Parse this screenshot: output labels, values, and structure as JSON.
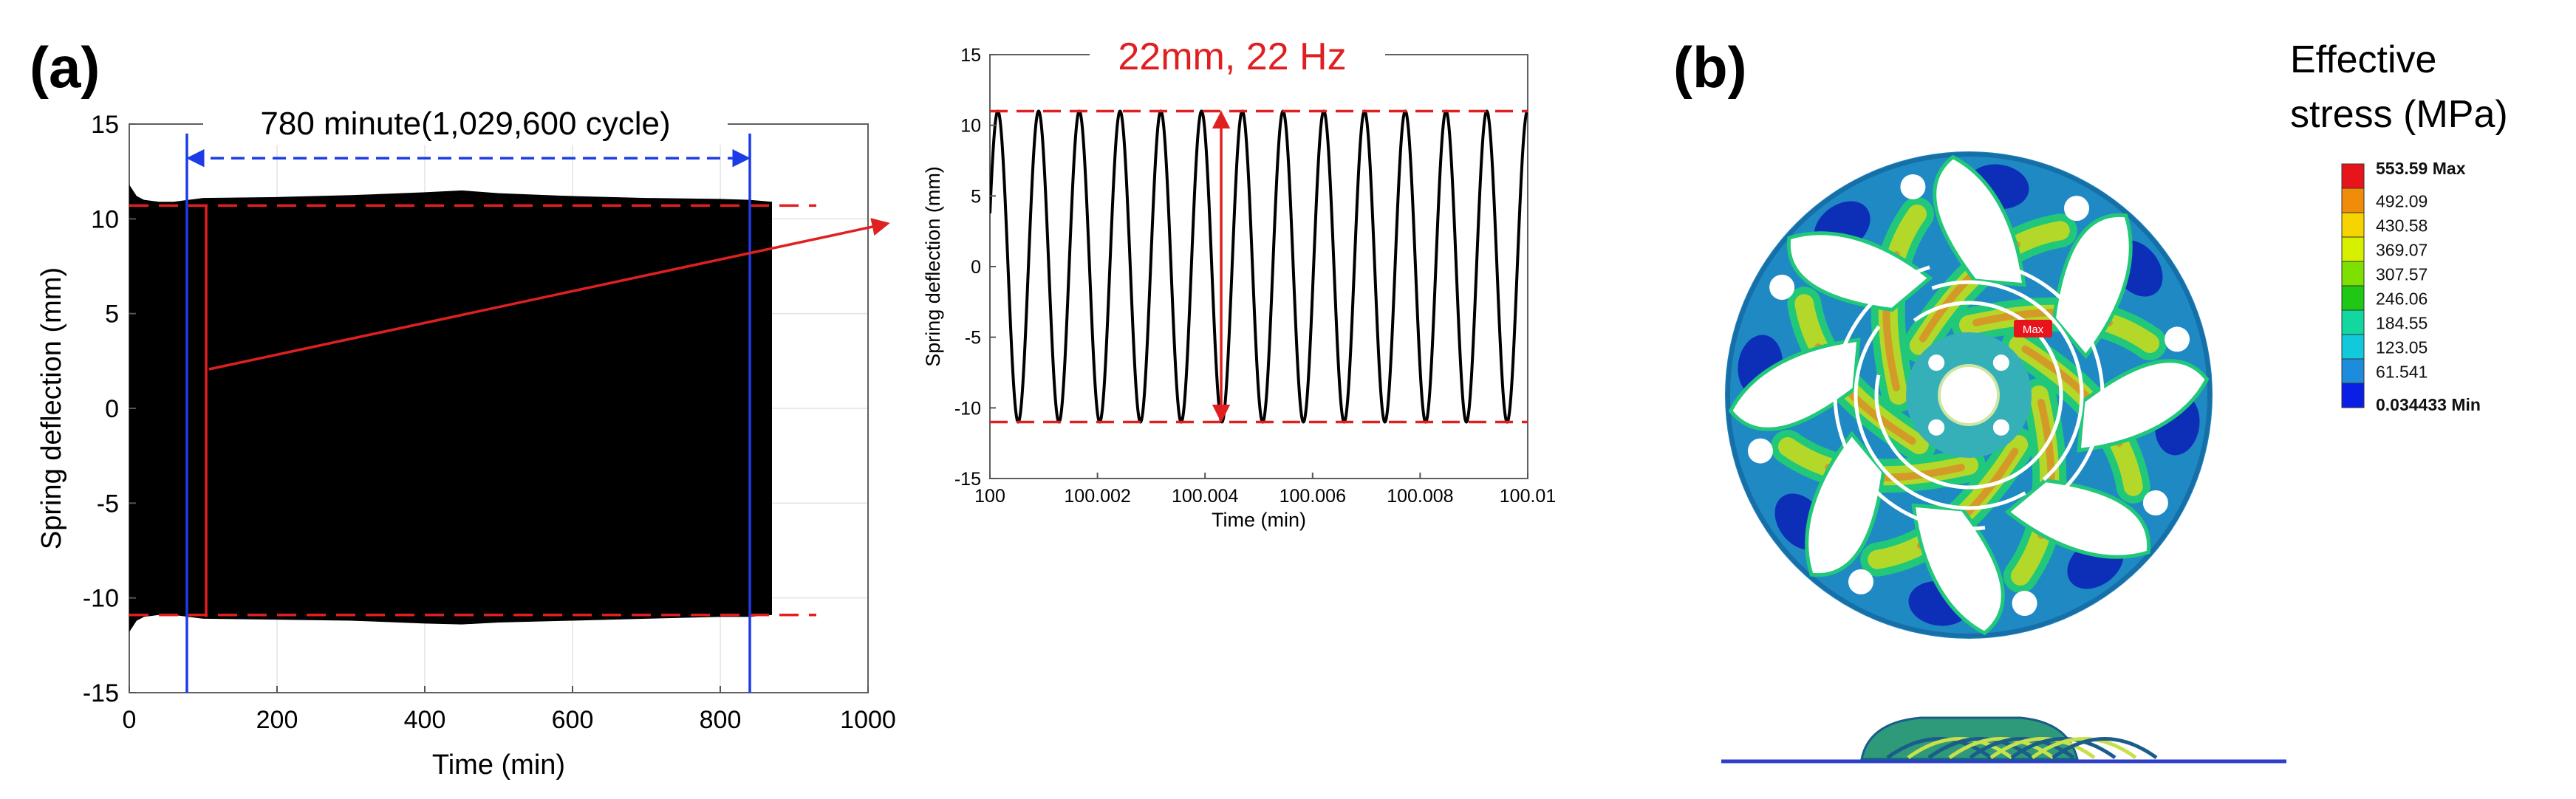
{
  "panel_a": {
    "label": "(a)",
    "annotation": "780 minute(1,029,600 cycle)",
    "inset_annotation": "22mm, 22 Hz"
  },
  "panel_b": {
    "label": "(b)",
    "legend_title_line1": "Effective",
    "legend_title_line2": "stress (MPa)",
    "legend_entries": [
      {
        "text": "553.59 Max",
        "color": "#e8141b",
        "bold": true
      },
      {
        "text": "492.09",
        "color": "#f08c0a",
        "bold": false
      },
      {
        "text": "430.58",
        "color": "#f5d400",
        "bold": false
      },
      {
        "text": "369.07",
        "color": "#d6f000",
        "bold": false
      },
      {
        "text": "307.57",
        "color": "#7ee000",
        "bold": false
      },
      {
        "text": "246.06",
        "color": "#1ec814",
        "bold": false
      },
      {
        "text": "184.55",
        "color": "#12d8a0",
        "bold": false
      },
      {
        "text": "123.05",
        "color": "#12c8dc",
        "bold": false
      },
      {
        "text": "61.541",
        "color": "#1e8cdc",
        "bold": false
      },
      {
        "text": "0.034433 Min",
        "color": "#0a1ee6",
        "bold": true
      }
    ],
    "max_tag": "Max",
    "colors": {
      "base": "#1f89c4",
      "ring": "#1a7dbd",
      "low": "#0d2fb8",
      "mid": "#21c87a",
      "high": "#b4d82a",
      "peak": "#d49a28"
    }
  },
  "chart_data": [
    {
      "id": "main",
      "type": "line",
      "title": "",
      "xlabel": "Time (min)",
      "ylabel": "Spring deflection (mm)",
      "xlim": [
        0,
        1000
      ],
      "ylim": [
        -15,
        15
      ],
      "xticks": [
        0,
        200,
        400,
        600,
        800,
        1000
      ],
      "yticks": [
        -15,
        -10,
        -5,
        0,
        5,
        10,
        15
      ],
      "grid": true,
      "series": [
        {
          "color": "#000000",
          "x": [
            0,
            10,
            20,
            40,
            60,
            80,
            100,
            200,
            300,
            400,
            450,
            500,
            600,
            700,
            800,
            840,
            870
          ],
          "upper": [
            11.8,
            11.2,
            11.0,
            10.9,
            10.9,
            11.0,
            11.1,
            11.15,
            11.25,
            11.4,
            11.5,
            11.35,
            11.2,
            11.1,
            11.05,
            11.0,
            10.9
          ],
          "lower": [
            -11.8,
            -11.2,
            -11.0,
            -10.9,
            -10.9,
            -11.0,
            -11.1,
            -11.15,
            -11.2,
            -11.35,
            -11.4,
            -11.3,
            -11.2,
            -11.1,
            -11.0,
            -11.0,
            -10.9
          ]
        }
      ],
      "reference_lines": [
        {
          "axis": "y",
          "value": 10.7,
          "style": "dashed",
          "color": "#e02020",
          "x_range": [
            0,
            930
          ]
        },
        {
          "axis": "y",
          "value": -10.9,
          "style": "dashed",
          "color": "#e02020",
          "x_range": [
            0,
            930
          ]
        },
        {
          "axis": "x",
          "value": 78,
          "style": "solid",
          "color": "#1e3ce6"
        },
        {
          "axis": "x",
          "value": 840,
          "style": "solid",
          "color": "#1e3ce6"
        }
      ],
      "span_arrow": {
        "from": 78,
        "to": 840,
        "y": 13.2,
        "color": "#1e3ce6",
        "style": "dashed"
      },
      "marker_line": {
        "x": 104,
        "y_range": [
          -11,
          10.7
        ],
        "color": "#e02020"
      }
    },
    {
      "id": "inset",
      "type": "line",
      "title": "",
      "xlabel": "Time (min)",
      "ylabel": "Spring deflection (mm)",
      "xlim": [
        100,
        100.01
      ],
      "ylim": [
        -15,
        15
      ],
      "xticks": [
        100,
        100.002,
        100.004,
        100.006,
        100.008,
        100.01
      ],
      "yticks": [
        -15,
        -10,
        -5,
        0,
        5,
        10,
        15
      ],
      "grid": false,
      "series": [
        {
          "color": "#000000",
          "amplitude": 11,
          "frequency_hz": 22,
          "phase_deg": 20
        }
      ],
      "reference_lines": [
        {
          "axis": "y",
          "value": 11,
          "style": "dashed",
          "color": "#e02020"
        },
        {
          "axis": "y",
          "value": -11,
          "style": "dashed",
          "color": "#e02020"
        }
      ],
      "span_arrow": {
        "axis": "y",
        "x": 100.0043,
        "from": -11,
        "to": 11,
        "color": "#e02020"
      }
    }
  ]
}
